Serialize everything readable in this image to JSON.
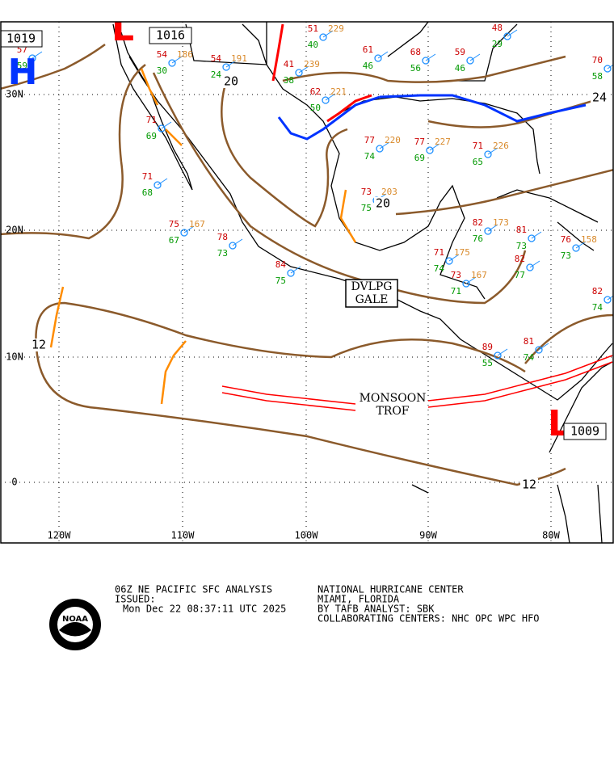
{
  "map": {
    "lat_labels": [
      "30N",
      "20N",
      "10N",
      "0"
    ],
    "lon_labels": [
      "120W",
      "110W",
      "100W",
      "90W",
      "80W"
    ],
    "pressure_centers": [
      {
        "symbol": "H",
        "pressure": 1019
      },
      {
        "symbol": "L",
        "pressure": 1016
      },
      {
        "symbol": "L",
        "pressure": 1009
      }
    ],
    "isobar_labels": [
      12,
      12,
      20,
      20,
      24
    ],
    "annotations": [
      "DVLPG",
      "GALE",
      "MONSOON",
      "TROF"
    ],
    "stations": [
      {
        "temp": 51,
        "pressure": 229,
        "dewpoint": 40
      },
      {
        "temp": 41,
        "pressure": 239,
        "dewpoint": 38
      },
      {
        "temp": 54,
        "pressure": 186,
        "dewpoint": 30
      },
      {
        "temp": 54,
        "pressure": 191,
        "dewpoint": 24
      },
      {
        "temp": 61,
        "dewpoint": 46
      },
      {
        "temp": 68,
        "dewpoint": 56
      },
      {
        "temp": 59,
        "dewpoint": 46
      },
      {
        "temp": 48,
        "dewpoint": 29
      },
      {
        "temp": 57,
        "dewpoint": 59
      },
      {
        "temp": 62,
        "pressure": 221,
        "dewpoint": 50
      },
      {
        "temp": 77,
        "pressure": 220,
        "dewpoint": 74
      },
      {
        "temp": 77,
        "pressure": 227,
        "dewpoint": 69
      },
      {
        "temp": 71,
        "pressure": 226,
        "dewpoint": 65
      },
      {
        "temp": 73,
        "pressure": 203,
        "dewpoint": 75
      },
      {
        "temp": 82,
        "pressure": 173,
        "dewpoint": 76
      },
      {
        "temp": 81,
        "dewpoint": 73
      },
      {
        "temp": 75,
        "pressure": 167,
        "dewpoint": 67
      },
      {
        "temp": 78,
        "dewpoint": 73
      },
      {
        "temp": 84,
        "dewpoint": 75
      },
      {
        "temp": 71,
        "dewpoint": 68
      },
      {
        "temp": 71,
        "dewpoint": 69
      },
      {
        "temp": 73,
        "pressure": 167,
        "dewpoint": 71
      },
      {
        "temp": 82,
        "dewpoint": 77
      },
      {
        "temp": 76,
        "pressure": 158,
        "dewpoint": 73
      },
      {
        "temp": 82,
        "dewpoint": 74
      },
      {
        "temp": 81,
        "dewpoint": 74
      },
      {
        "temp": 89,
        "dewpoint": 55
      },
      {
        "temp": 71,
        "pressure": 175,
        "dewpoint": 74
      },
      {
        "temp": 70,
        "dewpoint": 58
      }
    ]
  },
  "footer": {
    "logo": "NOAA",
    "left": [
      "06Z NE PACIFIC SFC ANALYSIS",
      "ISSUED:",
      "Mon Dec 22 08:37:11 UTC 2025"
    ],
    "right": [
      "NATIONAL HURRICANE CENTER",
      "MIAMI, FLORIDA",
      "BY TAFB ANALYST: SBK",
      "COLLABORATING CENTERS: NHC OPC WPC HFO"
    ]
  }
}
